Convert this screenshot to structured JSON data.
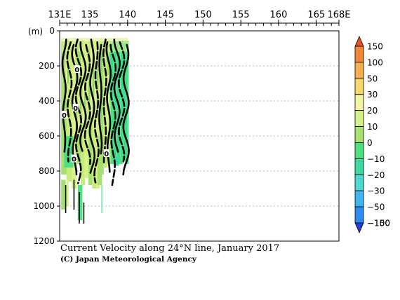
{
  "chart_data": {
    "type": "heatmap",
    "title": "Current Velocity along 24°N line, January 2017",
    "credit": "(C) Japan Meteorological Agency",
    "ylabel": "(m)",
    "x_range": [
      131,
      168
    ],
    "x_ticks": [
      {
        "value": 131,
        "label": "131E"
      },
      {
        "value": 135,
        "label": "135"
      },
      {
        "value": 140,
        "label": "140"
      },
      {
        "value": 145,
        "label": "145"
      },
      {
        "value": 150,
        "label": "150"
      },
      {
        "value": 155,
        "label": "155"
      },
      {
        "value": 160,
        "label": "160"
      },
      {
        "value": 165,
        "label": "165"
      },
      {
        "value": 168,
        "label": "168E"
      }
    ],
    "y_range": [
      0,
      1200
    ],
    "y_ticks": [
      {
        "value": 0,
        "label": "0"
      },
      {
        "value": 200,
        "label": "200"
      },
      {
        "value": 400,
        "label": "400"
      },
      {
        "value": 600,
        "label": "600"
      },
      {
        "value": 800,
        "label": "800"
      },
      {
        "value": 1000,
        "label": "1000"
      },
      {
        "value": 1200,
        "label": "1200"
      }
    ],
    "grid": true,
    "colorbar": {
      "levels": [
        -150,
        -100,
        -50,
        -30,
        -20,
        -10,
        0,
        10,
        20,
        30,
        50,
        100,
        150
      ],
      "labels": [
        "150",
        "100",
        "50",
        "30",
        "20",
        "10",
        "0",
        "−10",
        "−20",
        "−30",
        "−50",
        "−100",
        "−150"
      ],
      "colors": [
        "#2a3fd8",
        "#2f8cf0",
        "#3fb6f0",
        "#4fd8d0",
        "#3cd9a0",
        "#4ce080",
        "#a6e070",
        "#d8f088",
        "#f2f4a0",
        "#f8d86c",
        "#f6b050",
        "#f08838",
        "#e8502c"
      ]
    },
    "contour_labels": [
      {
        "lon": 133.3,
        "depth": 220,
        "text": "0"
      },
      {
        "lon": 133.1,
        "depth": 440,
        "text": "0"
      },
      {
        "lon": 131.6,
        "depth": 480,
        "text": "0"
      },
      {
        "lon": 132.9,
        "depth": 730,
        "text": "0"
      },
      {
        "lon": 137.2,
        "depth": 700,
        "text": "0"
      }
    ]
  }
}
